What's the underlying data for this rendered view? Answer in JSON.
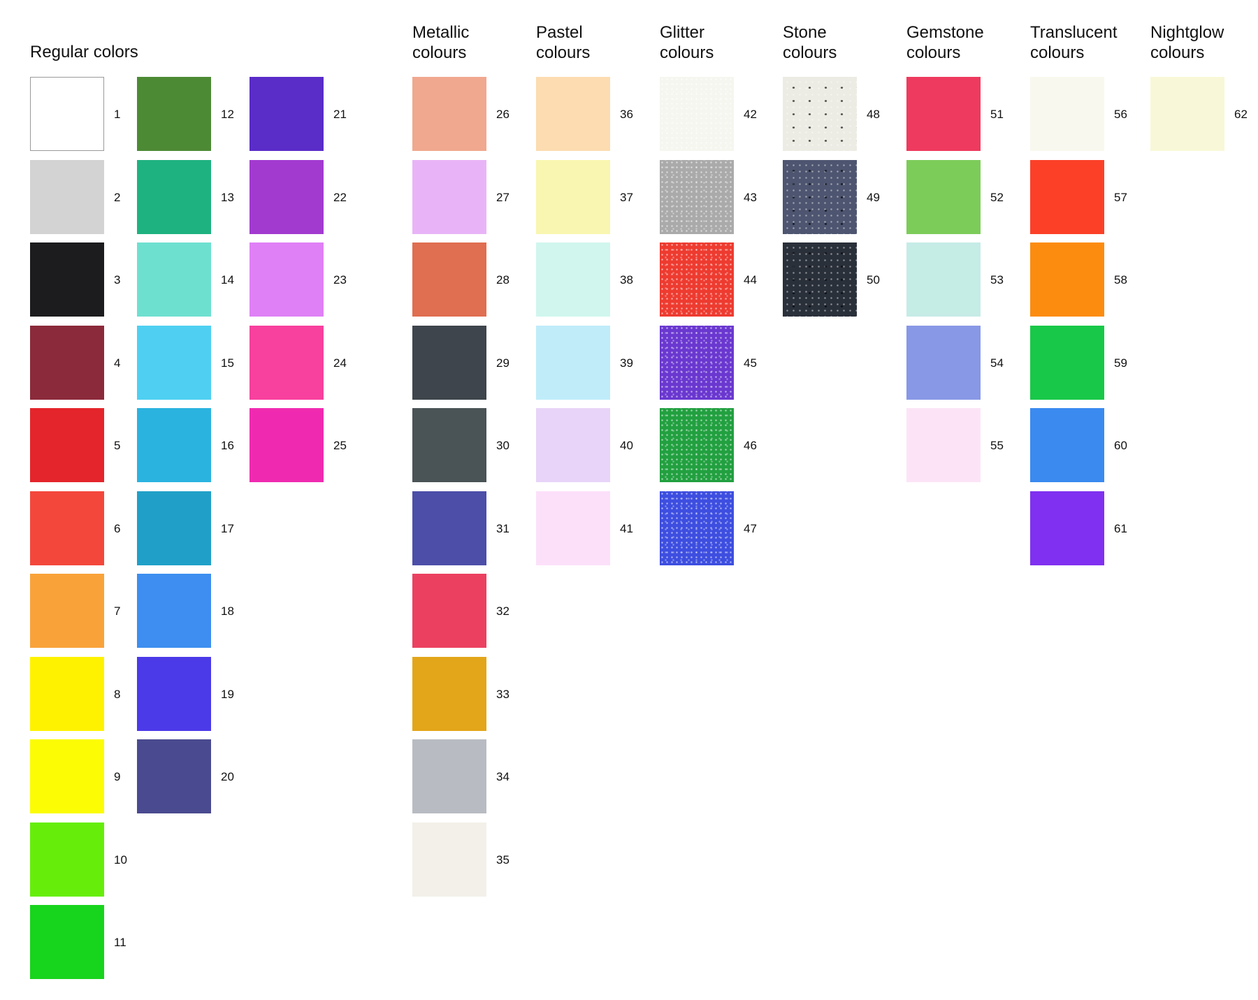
{
  "groups": [
    {
      "title": [
        "Regular colors"
      ],
      "columns": [
        [
          {
            "n": "1",
            "color": "#ffffff"
          },
          {
            "n": "2",
            "color": "#d3d3d3"
          },
          {
            "n": "3",
            "color": "#1c1c1e"
          },
          {
            "n": "4",
            "color": "#8b2a3a"
          },
          {
            "n": "5",
            "color": "#e4252b"
          },
          {
            "n": "6",
            "color": "#f4473b"
          },
          {
            "n": "7",
            "color": "#f9a23a"
          },
          {
            "n": "8",
            "color": "#fef200"
          },
          {
            "n": "9",
            "color": "#fcfc05"
          },
          {
            "n": "10",
            "color": "#66ee0a"
          },
          {
            "n": "11",
            "color": "#17d41c"
          }
        ],
        [
          {
            "n": "12",
            "color": "#4d8a34"
          },
          {
            "n": "13",
            "color": "#1fb281"
          },
          {
            "n": "14",
            "color": "#6ee0d0"
          },
          {
            "n": "15",
            "color": "#4fd0f2"
          },
          {
            "n": "16",
            "color": "#2bb3e0"
          },
          {
            "n": "17",
            "color": "#20a0c8"
          },
          {
            "n": "18",
            "color": "#3d8ef0"
          },
          {
            "n": "19",
            "color": "#4b3ae8"
          },
          {
            "n": "20",
            "color": "#4a4a90"
          }
        ],
        [
          {
            "n": "21",
            "color": "#5a2cc8"
          },
          {
            "n": "22",
            "color": "#a33ad0"
          },
          {
            "n": "23",
            "color": "#df80f6"
          },
          {
            "n": "24",
            "color": "#f8409e"
          },
          {
            "n": "25",
            "color": "#f02ab0"
          }
        ]
      ]
    },
    {
      "title": [
        "Metallic",
        "colours"
      ],
      "columns": [
        [
          {
            "n": "26",
            "color": "#f0a88f"
          },
          {
            "n": "27",
            "color": "#e9b4f7"
          },
          {
            "n": "28",
            "color": "#e06e50"
          },
          {
            "n": "29",
            "color": "#3e454c"
          },
          {
            "n": "30",
            "color": "#4a5356"
          },
          {
            "n": "31",
            "color": "#4c4ea8"
          },
          {
            "n": "32",
            "color": "#ec4060"
          },
          {
            "n": "33",
            "color": "#e3a61a"
          },
          {
            "n": "34",
            "color": "#b8bcc2"
          },
          {
            "n": "35",
            "color": "#f2f0e8"
          }
        ]
      ]
    },
    {
      "title": [
        "Pastel",
        "colours"
      ],
      "columns": [
        [
          {
            "n": "36",
            "color": "#fcdcb0"
          },
          {
            "n": "37",
            "color": "#f8f6b0"
          },
          {
            "n": "38",
            "color": "#d0f6ee"
          },
          {
            "n": "39",
            "color": "#c0ecfa"
          },
          {
            "n": "40",
            "color": "#e8d4f8"
          },
          {
            "n": "41",
            "color": "#fce0fa"
          }
        ]
      ]
    },
    {
      "title": [
        "Glitter",
        "colours"
      ],
      "texture": "glitter",
      "columns": [
        [
          {
            "n": "42",
            "color": "#f6f6f0"
          },
          {
            "n": "43",
            "color": "#aaaaaa"
          },
          {
            "n": "44",
            "color": "#ee3b30"
          },
          {
            "n": "45",
            "color": "#6a38d0"
          },
          {
            "n": "46",
            "color": "#22a040"
          },
          {
            "n": "47",
            "color": "#3d4ee0"
          }
        ]
      ]
    },
    {
      "title": [
        "Stone",
        "colours"
      ],
      "texture": "stone",
      "columns": [
        [
          {
            "n": "48",
            "color": "#ecece4"
          },
          {
            "n": "49",
            "color": "#4d5570"
          },
          {
            "n": "50",
            "color": "#2a303a"
          }
        ]
      ]
    },
    {
      "title": [
        "Gemstone",
        "colours"
      ],
      "columns": [
        [
          {
            "n": "51",
            "color": "#ee3a5e"
          },
          {
            "n": "52",
            "color": "#7ccc5a"
          },
          {
            "n": "53",
            "color": "#c6ece6"
          },
          {
            "n": "54",
            "color": "#8898e6"
          },
          {
            "n": "55",
            "color": "#fce4f6"
          }
        ]
      ]
    },
    {
      "title": [
        "Translucent",
        "colours"
      ],
      "columns": [
        [
          {
            "n": "56",
            "color": "#f8f8ee"
          },
          {
            "n": "57",
            "color": "#fc4028"
          },
          {
            "n": "58",
            "color": "#fc8c10"
          },
          {
            "n": "59",
            "color": "#18c848"
          },
          {
            "n": "60",
            "color": "#3a8af0"
          },
          {
            "n": "61",
            "color": "#8030f0"
          }
        ]
      ]
    },
    {
      "title": [
        "Nightglow",
        "colours"
      ],
      "columns": [
        [
          {
            "n": "62",
            "color": "#f8f8d8"
          }
        ]
      ]
    }
  ]
}
